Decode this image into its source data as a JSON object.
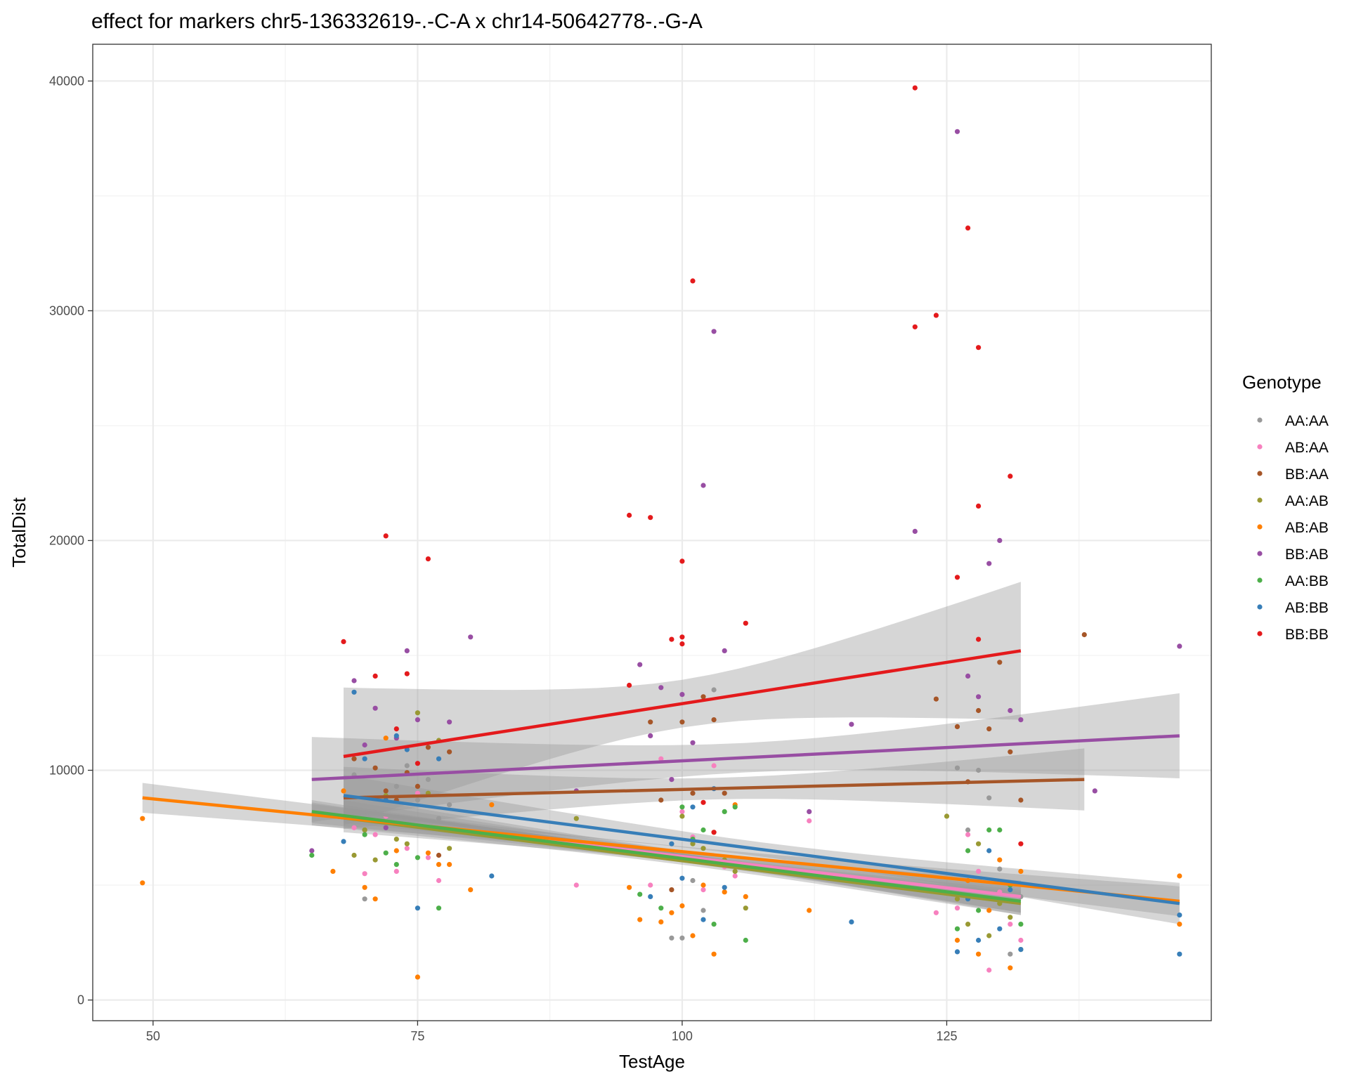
{
  "chart_data": {
    "type": "scatter",
    "title": "effect for markers chr5-136332619-.-C-A x chr14-50642778-.-G-A",
    "xlabel": "TestAge",
    "ylabel": "TotalDist",
    "xlim": [
      44.3,
      150.0
    ],
    "ylim": [
      -900,
      41600
    ],
    "x_ticks": [
      50,
      75,
      100,
      125
    ],
    "x_tick_labels": [
      "50",
      "75",
      "100",
      "125"
    ],
    "y_ticks": [
      0,
      10000,
      20000,
      30000,
      40000
    ],
    "y_tick_labels": [
      "0",
      "10000",
      "20000",
      "30000",
      "40000"
    ],
    "grid": true,
    "legend": {
      "title": "Genotype",
      "position": "right"
    },
    "series": [
      {
        "name": "AA:AA",
        "color": "#999999",
        "trend": {
          "x": [
            68,
            132
          ],
          "y": [
            8300,
            4300
          ],
          "band": 600
        },
        "points": [
          [
            69,
            9800
          ],
          [
            70,
            4400
          ],
          [
            71,
            8800
          ],
          [
            72,
            7600
          ],
          [
            73,
            9300
          ],
          [
            74,
            10200
          ],
          [
            75,
            8700
          ],
          [
            76,
            9600
          ],
          [
            77,
            7900
          ],
          [
            78,
            8500
          ],
          [
            99,
            2700
          ],
          [
            100,
            2700
          ],
          [
            101,
            5200
          ],
          [
            102,
            3900
          ],
          [
            103,
            13500
          ],
          [
            104,
            6000
          ],
          [
            126,
            10100
          ],
          [
            127,
            7400
          ],
          [
            128,
            10000
          ],
          [
            129,
            8800
          ],
          [
            130,
            5700
          ],
          [
            131,
            2000
          ],
          [
            132,
            4500
          ]
        ]
      },
      {
        "name": "AB:AA",
        "color": "#F781BF",
        "trend": {
          "x": [
            68,
            132
          ],
          "y": [
            8000,
            4500
          ],
          "band": 700
        },
        "points": [
          [
            69,
            7500
          ],
          [
            70,
            5500
          ],
          [
            71,
            7200
          ],
          [
            72,
            8000
          ],
          [
            73,
            5600
          ],
          [
            74,
            6600
          ],
          [
            75,
            9000
          ],
          [
            76,
            6200
          ],
          [
            77,
            5200
          ],
          [
            90,
            5000
          ],
          [
            97,
            5000
          ],
          [
            98,
            10500
          ],
          [
            99,
            6300
          ],
          [
            100,
            8200
          ],
          [
            101,
            7100
          ],
          [
            102,
            4800
          ],
          [
            103,
            10200
          ],
          [
            104,
            5800
          ],
          [
            105,
            5400
          ],
          [
            112,
            7800
          ],
          [
            124,
            3800
          ],
          [
            126,
            4000
          ],
          [
            127,
            7200
          ],
          [
            128,
            5600
          ],
          [
            129,
            1300
          ],
          [
            130,
            4700
          ],
          [
            131,
            3300
          ],
          [
            132,
            2600
          ]
        ]
      },
      {
        "name": "BB:AA",
        "color": "#A65628",
        "trend": {
          "x": [
            68,
            138
          ],
          "y": [
            8800,
            9600
          ],
          "band": 1350
        },
        "points": [
          [
            69,
            10500
          ],
          [
            70,
            7400
          ],
          [
            71,
            10100
          ],
          [
            72,
            9100
          ],
          [
            73,
            8700
          ],
          [
            74,
            9900
          ],
          [
            75,
            9300
          ],
          [
            76,
            11000
          ],
          [
            77,
            6300
          ],
          [
            78,
            10800
          ],
          [
            97,
            12100
          ],
          [
            98,
            8700
          ],
          [
            99,
            4800
          ],
          [
            100,
            12100
          ],
          [
            101,
            9000
          ],
          [
            102,
            13200
          ],
          [
            103,
            12200
          ],
          [
            104,
            9000
          ],
          [
            124,
            13100
          ],
          [
            126,
            11900
          ],
          [
            127,
            9500
          ],
          [
            128,
            12600
          ],
          [
            129,
            11800
          ],
          [
            130,
            14700
          ],
          [
            131,
            10800
          ],
          [
            132,
            8700
          ],
          [
            138,
            15900
          ]
        ]
      },
      {
        "name": "AA:AB",
        "color": "#999933",
        "trend": {
          "x": [
            65,
            132
          ],
          "y": [
            8100,
            4200
          ],
          "band": 500
        },
        "points": [
          [
            69,
            6300
          ],
          [
            70,
            7400
          ],
          [
            71,
            6100
          ],
          [
            72,
            8900
          ],
          [
            73,
            7000
          ],
          [
            74,
            6800
          ],
          [
            75,
            12500
          ],
          [
            76,
            9000
          ],
          [
            77,
            11300
          ],
          [
            78,
            6600
          ],
          [
            90,
            7900
          ],
          [
            99,
            6400
          ],
          [
            100,
            8000
          ],
          [
            101,
            6800
          ],
          [
            102,
            6600
          ],
          [
            103,
            7300
          ],
          [
            104,
            6100
          ],
          [
            105,
            5600
          ],
          [
            106,
            4000
          ],
          [
            125,
            8000
          ],
          [
            126,
            4400
          ],
          [
            127,
            3300
          ],
          [
            128,
            6800
          ],
          [
            129,
            2800
          ],
          [
            130,
            4200
          ],
          [
            131,
            3600
          ],
          [
            132,
            2200
          ]
        ]
      },
      {
        "name": "AB:AB",
        "color": "#FF7F00",
        "trend": {
          "x": [
            49,
            147
          ],
          "y": [
            8800,
            4300
          ],
          "band": 650
        },
        "points": [
          [
            49,
            7900
          ],
          [
            49,
            5100
          ],
          [
            67,
            5600
          ],
          [
            68,
            9100
          ],
          [
            70,
            4900
          ],
          [
            71,
            4400
          ],
          [
            72,
            11400
          ],
          [
            73,
            6500
          ],
          [
            75,
            1000
          ],
          [
            76,
            6400
          ],
          [
            77,
            5900
          ],
          [
            78,
            5900
          ],
          [
            80,
            4800
          ],
          [
            82,
            8500
          ],
          [
            95,
            4900
          ],
          [
            96,
            3500
          ],
          [
            98,
            3400
          ],
          [
            99,
            3800
          ],
          [
            100,
            4100
          ],
          [
            101,
            2800
          ],
          [
            102,
            5000
          ],
          [
            103,
            2000
          ],
          [
            104,
            4700
          ],
          [
            105,
            8500
          ],
          [
            106,
            4500
          ],
          [
            112,
            3900
          ],
          [
            126,
            2600
          ],
          [
            127,
            5200
          ],
          [
            128,
            2000
          ],
          [
            129,
            3900
          ],
          [
            130,
            6100
          ],
          [
            131,
            1400
          ],
          [
            132,
            5600
          ],
          [
            147,
            5400
          ],
          [
            147,
            3300
          ]
        ]
      },
      {
        "name": "BB:AB",
        "color": "#984EA3",
        "trend": {
          "x": [
            65,
            147
          ],
          "y": [
            9600,
            11500
          ],
          "band": 1850
        },
        "points": [
          [
            65,
            6500
          ],
          [
            69,
            13900
          ],
          [
            70,
            11100
          ],
          [
            71,
            12700
          ],
          [
            72,
            7500
          ],
          [
            73,
            11400
          ],
          [
            74,
            15200
          ],
          [
            75,
            12200
          ],
          [
            78,
            12100
          ],
          [
            80,
            15800
          ],
          [
            90,
            9100
          ],
          [
            96,
            14600
          ],
          [
            97,
            11500
          ],
          [
            98,
            13600
          ],
          [
            99,
            9600
          ],
          [
            100,
            13300
          ],
          [
            101,
            11200
          ],
          [
            102,
            22400
          ],
          [
            103,
            29100
          ],
          [
            104,
            15200
          ],
          [
            112,
            8200
          ],
          [
            116,
            12000
          ],
          [
            122,
            20400
          ],
          [
            126,
            37800
          ],
          [
            127,
            14100
          ],
          [
            128,
            13200
          ],
          [
            129,
            19000
          ],
          [
            130,
            20000
          ],
          [
            131,
            12600
          ],
          [
            132,
            12200
          ],
          [
            139,
            9100
          ],
          [
            147,
            15400
          ]
        ]
      },
      {
        "name": "AA:BB",
        "color": "#4DAF4A",
        "trend": {
          "x": [
            65,
            132
          ],
          "y": [
            8200,
            4300
          ],
          "band": 500
        },
        "points": [
          [
            65,
            6300
          ],
          [
            70,
            7200
          ],
          [
            72,
            6400
          ],
          [
            73,
            5900
          ],
          [
            75,
            6200
          ],
          [
            77,
            4000
          ],
          [
            96,
            4600
          ],
          [
            98,
            4000
          ],
          [
            99,
            6200
          ],
          [
            100,
            8400
          ],
          [
            101,
            7000
          ],
          [
            102,
            7400
          ],
          [
            103,
            3300
          ],
          [
            104,
            8200
          ],
          [
            105,
            8400
          ],
          [
            106,
            2600
          ],
          [
            126,
            3100
          ],
          [
            127,
            6500
          ],
          [
            128,
            3900
          ],
          [
            129,
            7400
          ],
          [
            130,
            7400
          ],
          [
            131,
            5000
          ],
          [
            132,
            3300
          ]
        ]
      },
      {
        "name": "AB:BB",
        "color": "#377EB8",
        "trend": {
          "x": [
            68,
            147
          ],
          "y": [
            8900,
            4200
          ],
          "band": 900
        },
        "points": [
          [
            68,
            6900
          ],
          [
            69,
            13400
          ],
          [
            70,
            10500
          ],
          [
            72,
            8700
          ],
          [
            73,
            11500
          ],
          [
            74,
            10900
          ],
          [
            75,
            4000
          ],
          [
            77,
            10500
          ],
          [
            82,
            5400
          ],
          [
            97,
            4500
          ],
          [
            99,
            6800
          ],
          [
            100,
            5300
          ],
          [
            101,
            8400
          ],
          [
            102,
            3500
          ],
          [
            103,
            9200
          ],
          [
            104,
            4900
          ],
          [
            116,
            3400
          ],
          [
            126,
            2100
          ],
          [
            127,
            4400
          ],
          [
            128,
            2600
          ],
          [
            129,
            6500
          ],
          [
            130,
            3100
          ],
          [
            131,
            4800
          ],
          [
            132,
            2200
          ],
          [
            147,
            3700
          ],
          [
            147,
            2000
          ]
        ]
      },
      {
        "name": "BB:BB",
        "color": "#E41A1C",
        "trend": {
          "x": [
            68,
            132
          ],
          "y": [
            10600,
            15200
          ],
          "band": 3000
        },
        "points": [
          [
            68,
            15600
          ],
          [
            71,
            14100
          ],
          [
            72,
            20200
          ],
          [
            73,
            11800
          ],
          [
            74,
            14200
          ],
          [
            75,
            10300
          ],
          [
            76,
            19200
          ],
          [
            95,
            21100
          ],
          [
            95,
            13700
          ],
          [
            97,
            21000
          ],
          [
            99,
            15700
          ],
          [
            100,
            19100
          ],
          [
            100,
            15800
          ],
          [
            100,
            15500
          ],
          [
            101,
            31300
          ],
          [
            102,
            8600
          ],
          [
            103,
            7300
          ],
          [
            106,
            16400
          ],
          [
            122,
            39700
          ],
          [
            122,
            29300
          ],
          [
            124,
            29800
          ],
          [
            126,
            18400
          ],
          [
            127,
            33600
          ],
          [
            128,
            28400
          ],
          [
            128,
            21500
          ],
          [
            128,
            15700
          ],
          [
            131,
            22800
          ],
          [
            132,
            6800
          ]
        ]
      }
    ]
  }
}
